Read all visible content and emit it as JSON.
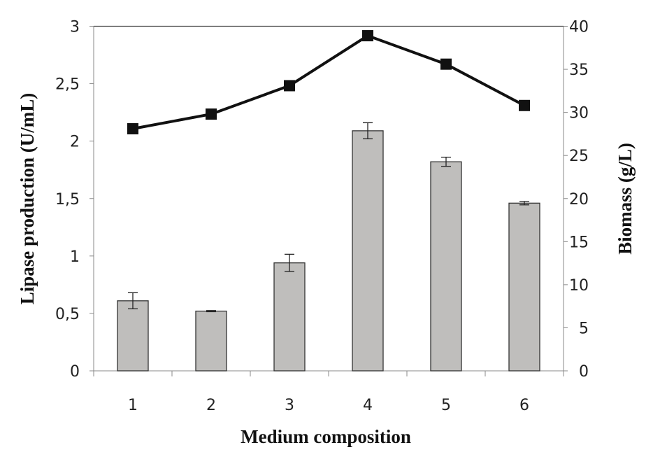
{
  "chart_data": {
    "type": "bar+line",
    "xlabel": "Medium composition",
    "ylabel_left": "Lipase production (U/mL)",
    "ylabel_right": "Biomass (g/L)",
    "categories": [
      "1",
      "2",
      "3",
      "4",
      "5",
      "6"
    ],
    "ylim_left": [
      0,
      3
    ],
    "yticks_left": [
      "0",
      "0,5",
      "1",
      "1,5",
      "2",
      "2,5",
      "3"
    ],
    "ylim_right": [
      0,
      40
    ],
    "yticks_right": [
      "0",
      "5",
      "10",
      "15",
      "20",
      "25",
      "30",
      "35",
      "40"
    ],
    "grid": false,
    "series": [
      {
        "type": "bar",
        "axis": "left",
        "color": "#bfbebc",
        "values": [
          0.61,
          0.52,
          0.94,
          2.09,
          1.82,
          1.46
        ],
        "errors": [
          0.07,
          0.005,
          0.075,
          0.07,
          0.04,
          0.015
        ]
      },
      {
        "type": "line",
        "axis": "right",
        "color": "#111111",
        "marker": "square",
        "values": [
          28.1,
          29.8,
          33.1,
          38.9,
          35.6,
          30.8
        ]
      }
    ]
  }
}
